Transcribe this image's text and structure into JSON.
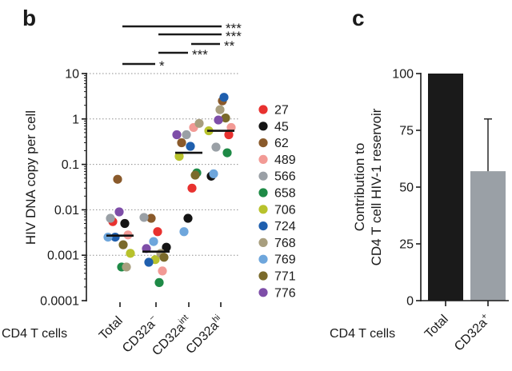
{
  "panel_b": {
    "letter": "b",
    "x_row_label": "CD4 T cells",
    "chart_data": {
      "type": "scatter",
      "title": "",
      "ylabel": "HIV DNA copy per cell",
      "yscale": "log",
      "ylim": [
        0.0001,
        10
      ],
      "yticks": [
        {
          "value": 10,
          "label": "10"
        },
        {
          "value": 1,
          "label": "1"
        },
        {
          "value": 0.1,
          "label": "0.1"
        },
        {
          "value": 0.01,
          "label": "0.01"
        },
        {
          "value": 0.001,
          "label": "0.001"
        },
        {
          "value": 0.0001,
          "label": "0.0001"
        }
      ],
      "categories": [
        {
          "base": "Total",
          "sup": ""
        },
        {
          "base": "CD32a",
          "sup": "−"
        },
        {
          "base": "CD32a",
          "sup": "int"
        },
        {
          "base": "CD32a",
          "sup": "hi"
        }
      ],
      "medians": [
        0.0027,
        0.0012,
        0.18,
        0.55
      ],
      "donors": [
        {
          "id": "27",
          "color": "#e8312f",
          "values": [
            0.0055,
            0.0033,
            0.03,
            0.45
          ]
        },
        {
          "id": "45",
          "color": "#141414",
          "values": [
            0.005,
            0.0015,
            0.0065,
            0.055
          ]
        },
        {
          "id": "62",
          "color": "#8a5a2b",
          "values": [
            0.047,
            0.0065,
            0.3,
            2.5
          ]
        },
        {
          "id": "489",
          "color": "#f29a95",
          "values": [
            0.0028,
            0.00045,
            0.65,
            0.65
          ]
        },
        {
          "id": "566",
          "color": "#9aa0a6",
          "values": [
            0.0065,
            0.0068,
            0.45,
            0.24
          ]
        },
        {
          "id": "658",
          "color": "#1e8a46",
          "values": [
            0.00055,
            0.00025,
            0.065,
            0.18
          ]
        },
        {
          "id": "706",
          "color": "#b8c22c",
          "values": [
            0.0011,
            0.0008,
            0.15,
            0.55
          ]
        },
        {
          "id": "724",
          "color": "#1f5fae",
          "values": [
            0.0025,
            0.0007,
            0.25,
            3.0
          ]
        },
        {
          "id": "768",
          "color": "#a89e7e",
          "values": [
            0.00055,
            0.0011,
            0.8,
            1.6
          ]
        },
        {
          "id": "769",
          "color": "#6ea6dc",
          "values": [
            0.0025,
            0.002,
            0.0033,
            0.062
          ]
        },
        {
          "id": "771",
          "color": "#7a6a2a",
          "values": [
            0.0017,
            0.0009,
            0.058,
            1.05
          ]
        },
        {
          "id": "776",
          "color": "#7e4ea8",
          "values": [
            0.009,
            0.0014,
            0.45,
            0.95
          ]
        }
      ],
      "significance": [
        {
          "from": 0,
          "to": 3,
          "label": "***"
        },
        {
          "from": 1,
          "to": 3,
          "label": "***"
        },
        {
          "from": 2,
          "to": 3,
          "label": "**"
        },
        {
          "from": 1,
          "to": 2,
          "label": "***"
        },
        {
          "from": 0,
          "to": 1,
          "label": "*"
        }
      ]
    }
  },
  "panel_c": {
    "letter": "c",
    "x_row_label": "CD4 T cells",
    "chart_data": {
      "type": "bar",
      "title": "",
      "ylabel_lines": [
        "Contribution to",
        "CD4 T cell HIV-1 reservoir"
      ],
      "ylim": [
        0,
        100
      ],
      "yticks": [
        0,
        25,
        50,
        75,
        100
      ],
      "categories": [
        {
          "base": "Total",
          "sup": ""
        },
        {
          "base": "CD32a",
          "sup": "+"
        }
      ],
      "values": [
        100,
        57
      ],
      "error_upper": [
        null,
        80
      ],
      "colors": [
        "#1a1a1a",
        "#9aa0a6"
      ]
    }
  }
}
